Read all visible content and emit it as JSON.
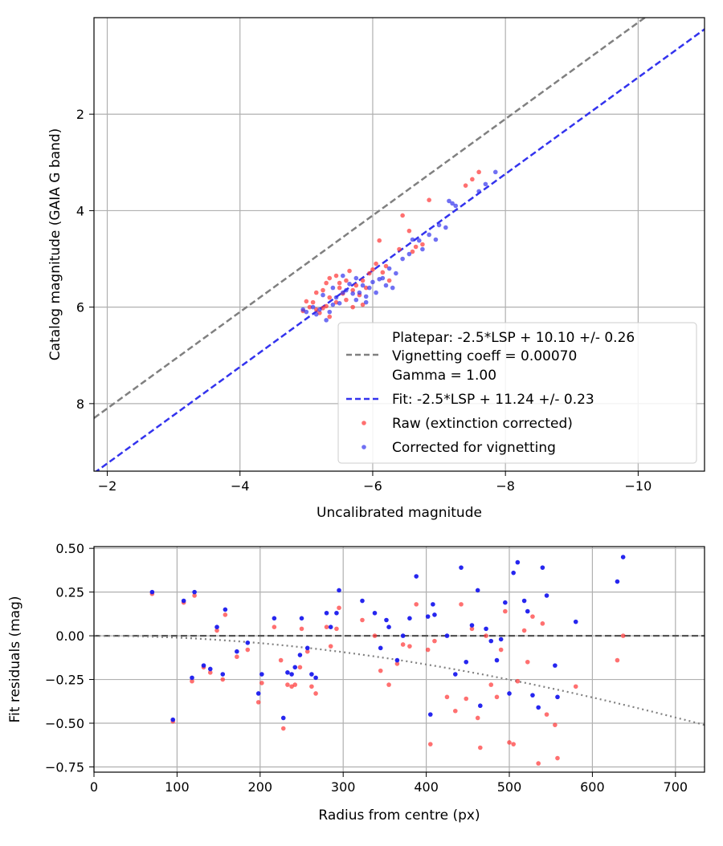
{
  "chart_data": [
    {
      "type": "scatter",
      "xlabel": "Uncalibrated magnitude",
      "ylabel": "Catalog magnitude (GAIA G band)",
      "xlim": [
        -1.8,
        -11.0
      ],
      "ylim": [
        9.4,
        0.0
      ],
      "x_inverted": true,
      "y_inverted": true,
      "grid": true,
      "legend_position": "lower-right",
      "xticks": [
        -2,
        -4,
        -6,
        -8,
        -10
      ],
      "xtick_labels": [
        "−2",
        "−4",
        "−6",
        "−8",
        "−10"
      ],
      "yticks": [
        2,
        4,
        6,
        8
      ],
      "ytick_labels": [
        "2",
        "4",
        "6",
        "8"
      ],
      "lines": [
        {
          "name": "Platepar: -2.5*LSP + 10.10 +/- 0.26",
          "slope": 1.0,
          "intercept": 10.1,
          "color": "#808080",
          "dash": "dashed"
        },
        {
          "name": "Fit: -2.5*LSP + 11.24 +/- 0.23",
          "slope": 1.0,
          "intercept": 11.24,
          "color": "#3333ee",
          "dash": "dashed"
        }
      ],
      "legend_entries": [
        {
          "label_lines": [
            "Platepar: -2.5*LSP + 10.10 +/- 0.26",
            "Vignetting coeff = 0.00070",
            "Gamma = 1.00"
          ],
          "marker": "dashed-line",
          "color": "#808080"
        },
        {
          "label_lines": [
            "Fit: -2.5*LSP + 11.24 +/- 0.23"
          ],
          "marker": "dashed-line",
          "color": "#3333ee"
        },
        {
          "label_lines": [
            "Raw (extinction corrected)"
          ],
          "marker": "dot",
          "color": "#ff3333"
        },
        {
          "label_lines": [
            "Corrected for vignetting"
          ],
          "marker": "dot",
          "color": "#3333ee"
        }
      ],
      "series": [
        {
          "name": "Raw (extinction corrected)",
          "color": "#ff3333",
          "points": [
            [
              -4.95,
              6.08
            ],
            [
              -5.0,
              5.88
            ],
            [
              -5.05,
              6.0
            ],
            [
              -5.1,
              5.9
            ],
            [
              -5.15,
              6.05
            ],
            [
              -5.2,
              6.12
            ],
            [
              -5.25,
              6.02
            ],
            [
              -5.3,
              5.98
            ],
            [
              -5.35,
              6.2
            ],
            [
              -5.25,
              5.65
            ],
            [
              -5.3,
              5.5
            ],
            [
              -5.35,
              5.4
            ],
            [
              -5.45,
              5.35
            ],
            [
              -5.5,
              5.6
            ],
            [
              -5.55,
              5.72
            ],
            [
              -5.6,
              5.45
            ],
            [
              -5.65,
              5.25
            ],
            [
              -5.7,
              5.65
            ],
            [
              -5.75,
              5.55
            ],
            [
              -5.8,
              5.75
            ],
            [
              -5.85,
              5.45
            ],
            [
              -5.9,
              5.6
            ],
            [
              -5.95,
              5.3
            ],
            [
              -6.0,
              5.22
            ],
            [
              -6.05,
              5.1
            ],
            [
              -6.15,
              5.28
            ],
            [
              -6.2,
              5.15
            ],
            [
              -6.1,
              4.62
            ],
            [
              -6.4,
              4.8
            ],
            [
              -6.55,
              4.42
            ],
            [
              -6.6,
              4.85
            ],
            [
              -6.75,
              4.7
            ],
            [
              -6.45,
              4.1
            ],
            [
              -6.85,
              3.78
            ],
            [
              -7.4,
              3.48
            ],
            [
              -7.5,
              3.35
            ],
            [
              -7.6,
              3.2
            ],
            [
              -5.6,
              5.85
            ],
            [
              -5.15,
              5.7
            ],
            [
              -5.45,
              5.9
            ],
            [
              -5.7,
              6.0
            ],
            [
              -5.35,
              5.8
            ],
            [
              -5.5,
              5.5
            ],
            [
              -5.85,
              5.95
            ],
            [
              -6.25,
              5.45
            ],
            [
              -6.65,
              4.75
            ]
          ]
        },
        {
          "name": "Corrected for vignetting",
          "color": "#3333ee",
          "points": [
            [
              -4.95,
              6.05
            ],
            [
              -5.0,
              6.1
            ],
            [
              -5.1,
              6.0
            ],
            [
              -5.15,
              6.15
            ],
            [
              -5.2,
              6.05
            ],
            [
              -5.3,
              6.27
            ],
            [
              -5.35,
              6.1
            ],
            [
              -5.4,
              5.95
            ],
            [
              -5.45,
              5.8
            ],
            [
              -5.5,
              5.92
            ],
            [
              -5.55,
              5.7
            ],
            [
              -5.6,
              5.65
            ],
            [
              -5.65,
              5.52
            ],
            [
              -5.7,
              5.72
            ],
            [
              -5.75,
              5.85
            ],
            [
              -5.8,
              5.7
            ],
            [
              -5.85,
              5.55
            ],
            [
              -5.9,
              5.78
            ],
            [
              -5.95,
              5.6
            ],
            [
              -6.0,
              5.48
            ],
            [
              -6.1,
              5.42
            ],
            [
              -6.15,
              5.4
            ],
            [
              -6.2,
              5.55
            ],
            [
              -6.25,
              5.2
            ],
            [
              -6.35,
              5.3
            ],
            [
              -6.45,
              5.0
            ],
            [
              -6.55,
              4.9
            ],
            [
              -6.6,
              4.6
            ],
            [
              -6.7,
              4.62
            ],
            [
              -6.75,
              4.8
            ],
            [
              -6.85,
              4.5
            ],
            [
              -7.0,
              4.3
            ],
            [
              -7.1,
              4.35
            ],
            [
              -7.15,
              3.8
            ],
            [
              -7.2,
              3.85
            ],
            [
              -7.25,
              3.9
            ],
            [
              -7.85,
              3.2
            ],
            [
              -7.7,
              3.45
            ],
            [
              -7.6,
              3.6
            ],
            [
              -5.25,
              5.75
            ],
            [
              -5.4,
              5.6
            ],
            [
              -5.55,
              5.35
            ],
            [
              -5.75,
              5.4
            ],
            [
              -5.9,
              5.9
            ],
            [
              -6.05,
              5.7
            ],
            [
              -6.3,
              5.6
            ],
            [
              -6.95,
              4.6
            ]
          ]
        }
      ]
    },
    {
      "type": "scatter",
      "xlabel": "Radius from centre (px)",
      "ylabel": "Fit residuals (mag)",
      "xlim": [
        0,
        735
      ],
      "ylim": [
        -0.78,
        0.51
      ],
      "grid": true,
      "xticks": [
        0,
        100,
        200,
        300,
        400,
        500,
        600,
        700
      ],
      "xtick_labels": [
        "0",
        "100",
        "200",
        "300",
        "400",
        "500",
        "600",
        "700"
      ],
      "yticks": [
        0.5,
        0.25,
        0.0,
        -0.25,
        -0.5,
        -0.75
      ],
      "ytick_labels": [
        "0.50",
        "0.25",
        "0.00",
        "−0.25",
        "−0.50",
        "−0.75"
      ],
      "zero_line": {
        "y": 0.0,
        "color": "#555555",
        "dash": "dashed"
      },
      "vignetting_curve": {
        "coefficient": 0.0007,
        "color": "#808080",
        "dash": "dotted"
      },
      "series": [
        {
          "name": "Raw",
          "color": "#ff3333",
          "points": [
            [
              70,
              0.24
            ],
            [
              95,
              -0.49
            ],
            [
              108,
              0.19
            ],
            [
              118,
              -0.26
            ],
            [
              121,
              0.23
            ],
            [
              132,
              -0.18
            ],
            [
              140,
              -0.21
            ],
            [
              148,
              0.03
            ],
            [
              155,
              -0.25
            ],
            [
              158,
              0.12
            ],
            [
              172,
              -0.12
            ],
            [
              185,
              -0.08
            ],
            [
              198,
              -0.38
            ],
            [
              202,
              -0.27
            ],
            [
              217,
              0.05
            ],
            [
              225,
              -0.14
            ],
            [
              228,
              -0.53
            ],
            [
              233,
              -0.28
            ],
            [
              238,
              -0.29
            ],
            [
              242,
              -0.28
            ],
            [
              248,
              -0.18
            ],
            [
              250,
              0.04
            ],
            [
              257,
              -0.09
            ],
            [
              262,
              -0.29
            ],
            [
              267,
              -0.33
            ],
            [
              280,
              0.05
            ],
            [
              285,
              -0.06
            ],
            [
              292,
              0.04
            ],
            [
              295,
              0.16
            ],
            [
              323,
              0.09
            ],
            [
              338,
              0.0
            ],
            [
              345,
              -0.2
            ],
            [
              355,
              -0.28
            ],
            [
              365,
              -0.16
            ],
            [
              372,
              -0.05
            ],
            [
              380,
              -0.06
            ],
            [
              388,
              0.18
            ],
            [
              402,
              -0.08
            ],
            [
              405,
              -0.62
            ],
            [
              410,
              -0.03
            ],
            [
              425,
              -0.35
            ],
            [
              435,
              -0.43
            ],
            [
              442,
              0.18
            ],
            [
              448,
              -0.36
            ],
            [
              455,
              0.04
            ],
            [
              462,
              -0.47
            ],
            [
              465,
              -0.64
            ],
            [
              472,
              0.0
            ],
            [
              478,
              -0.28
            ],
            [
              485,
              -0.35
            ],
            [
              490,
              -0.08
            ],
            [
              495,
              0.14
            ],
            [
              500,
              -0.61
            ],
            [
              505,
              -0.62
            ],
            [
              510,
              -0.26
            ],
            [
              518,
              0.03
            ],
            [
              522,
              -0.15
            ],
            [
              528,
              0.11
            ],
            [
              535,
              -0.73
            ],
            [
              540,
              0.07
            ],
            [
              545,
              -0.45
            ],
            [
              555,
              -0.51
            ],
            [
              558,
              -0.7
            ],
            [
              580,
              -0.29
            ],
            [
              630,
              -0.14
            ],
            [
              637,
              0.0
            ]
          ]
        },
        {
          "name": "Corrected",
          "color": "#1a1aee",
          "points": [
            [
              70,
              0.25
            ],
            [
              95,
              -0.48
            ],
            [
              108,
              0.2
            ],
            [
              118,
              -0.24
            ],
            [
              121,
              0.25
            ],
            [
              132,
              -0.17
            ],
            [
              140,
              -0.19
            ],
            [
              148,
              0.05
            ],
            [
              155,
              -0.22
            ],
            [
              158,
              0.15
            ],
            [
              172,
              -0.09
            ],
            [
              185,
              -0.04
            ],
            [
              198,
              -0.33
            ],
            [
              202,
              -0.22
            ],
            [
              217,
              0.1
            ],
            [
              228,
              -0.47
            ],
            [
              233,
              -0.21
            ],
            [
              238,
              -0.22
            ],
            [
              242,
              -0.18
            ],
            [
              248,
              -0.11
            ],
            [
              250,
              0.1
            ],
            [
              257,
              -0.07
            ],
            [
              262,
              -0.22
            ],
            [
              267,
              -0.24
            ],
            [
              280,
              0.13
            ],
            [
              285,
              0.05
            ],
            [
              292,
              0.13
            ],
            [
              295,
              0.26
            ],
            [
              323,
              0.2
            ],
            [
              338,
              0.13
            ],
            [
              345,
              -0.07
            ],
            [
              352,
              0.09
            ],
            [
              355,
              0.05
            ],
            [
              365,
              -0.14
            ],
            [
              372,
              0.0
            ],
            [
              380,
              0.1
            ],
            [
              388,
              0.34
            ],
            [
              402,
              0.11
            ],
            [
              405,
              -0.45
            ],
            [
              408,
              0.18
            ],
            [
              410,
              0.12
            ],
            [
              425,
              0.0
            ],
            [
              435,
              -0.22
            ],
            [
              442,
              0.39
            ],
            [
              448,
              -0.15
            ],
            [
              455,
              0.06
            ],
            [
              462,
              0.26
            ],
            [
              465,
              -0.4
            ],
            [
              472,
              0.04
            ],
            [
              478,
              -0.03
            ],
            [
              485,
              -0.14
            ],
            [
              490,
              -0.02
            ],
            [
              495,
              0.19
            ],
            [
              500,
              -0.33
            ],
            [
              505,
              0.36
            ],
            [
              510,
              0.42
            ],
            [
              518,
              0.2
            ],
            [
              522,
              0.14
            ],
            [
              528,
              -0.34
            ],
            [
              535,
              -0.41
            ],
            [
              540,
              0.39
            ],
            [
              545,
              0.23
            ],
            [
              555,
              -0.17
            ],
            [
              558,
              -0.35
            ],
            [
              580,
              0.08
            ],
            [
              630,
              0.31
            ],
            [
              637,
              0.45
            ]
          ]
        }
      ]
    }
  ]
}
